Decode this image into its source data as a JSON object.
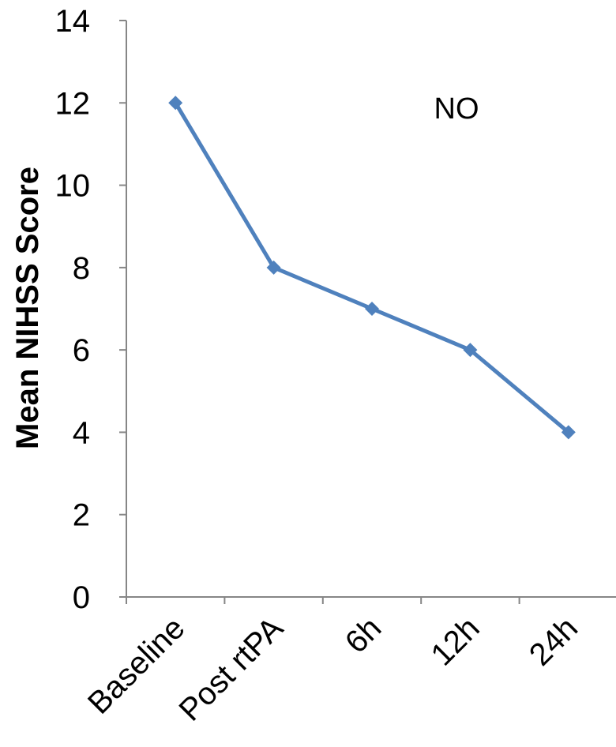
{
  "chart_data": {
    "type": "line",
    "categories": [
      "Baseline",
      "Post rtPA",
      "6h",
      "12h",
      "24h"
    ],
    "series": [
      {
        "values": [
          12,
          8,
          7,
          6,
          4
        ],
        "color": "#4F81BD",
        "marker": "diamond"
      }
    ],
    "title": "",
    "xlabel": "",
    "ylabel": "Mean NIHSS Score",
    "ylim": [
      0,
      14
    ],
    "yticks": [
      "0",
      "2",
      "4",
      "6",
      "8",
      "10",
      "12",
      "14"
    ],
    "grid": false,
    "annotations": [
      {
        "text": "NO"
      }
    ]
  }
}
